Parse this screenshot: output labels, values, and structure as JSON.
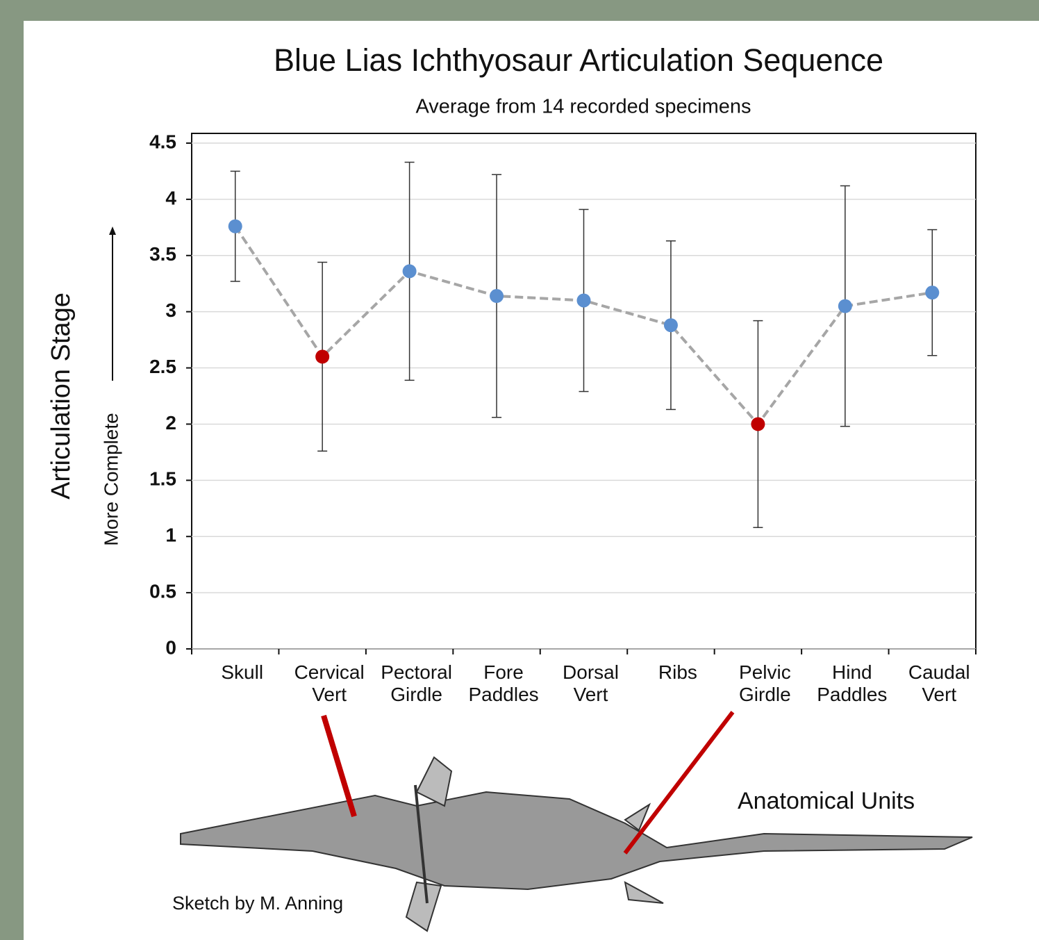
{
  "chart_data": {
    "type": "line",
    "title": "Blue Lias Ichthyosaur Articulation Sequence",
    "subtitle": "Average from 14 recorded specimens",
    "y_label": "Articulation Stage",
    "y_sublabel": "More Complete",
    "annotations": [
      "Anatomical Units",
      "Sketch by M. Anning"
    ],
    "categories": [
      "Skull",
      "Cervical Vert",
      "Pectoral Girdle",
      "Fore Paddles",
      "Dorsal Vert",
      "Ribs",
      "Pelvic Girdle",
      "Hind Paddles",
      "Caudal Vert"
    ],
    "series": [
      {
        "color": "#a6a6a6",
        "values": [
          3.76,
          2.6,
          3.36,
          3.14,
          3.1,
          2.88,
          2.0,
          3.05,
          3.17
        ],
        "errors": [
          0.49,
          0.84,
          0.97,
          1.08,
          0.81,
          0.75,
          0.92,
          1.07,
          0.56
        ],
        "point_colors": [
          "#5b8fd0",
          "#c00000",
          "#5b8fd0",
          "#5b8fd0",
          "#5b8fd0",
          "#5b8fd0",
          "#c00000",
          "#5b8fd0",
          "#5b8fd0"
        ]
      }
    ],
    "ylim": [
      0,
      4.5
    ],
    "yticks": [
      0,
      0.5,
      1,
      1.5,
      2,
      2.5,
      3,
      3.5,
      4,
      4.5
    ],
    "grid": true
  }
}
